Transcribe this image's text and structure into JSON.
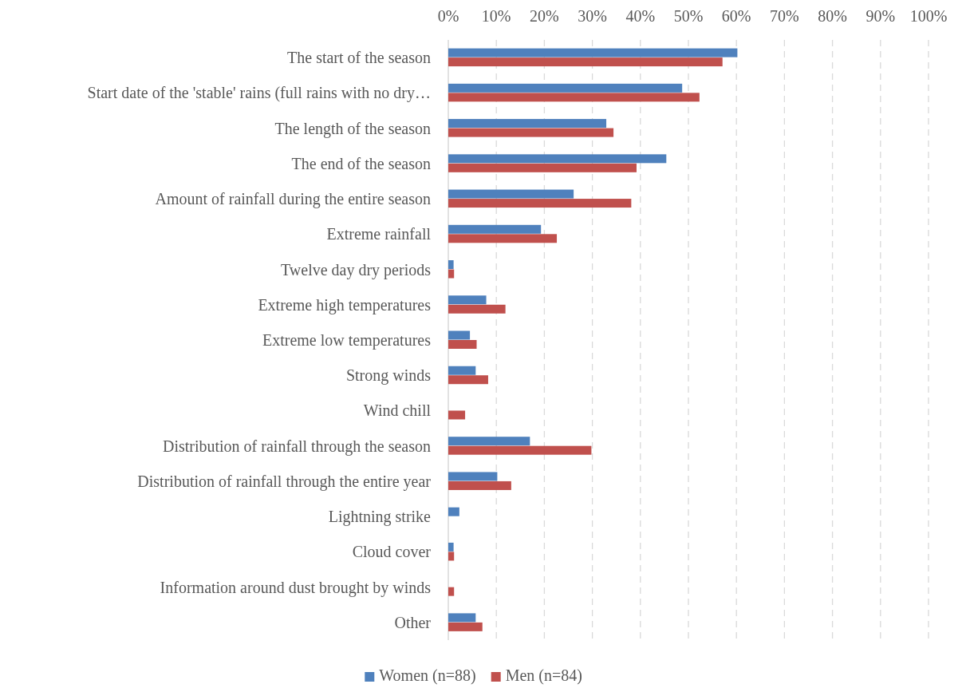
{
  "chart_data": {
    "type": "bar",
    "orientation": "horizontal",
    "categories": [
      "The start of the season",
      "Start date of the 'stable' rains (full rains with no dry…",
      "The length of the season",
      "The end of the season",
      "Amount of rainfall during the entire season",
      "Extreme rainfall",
      "Twelve day dry periods",
      "Extreme high temperatures",
      "Extreme low temperatures",
      "Strong winds",
      "Wind chill",
      "Distribution of rainfall through the season",
      "Distribution of rainfall through the entire year",
      "Lightning strike",
      "Cloud cover",
      "Information around dust brought by winds",
      "Other"
    ],
    "series": [
      {
        "name": "Women (n=88)",
        "color": "#4f81bd",
        "values": [
          60.2,
          48.7,
          32.9,
          45.4,
          26.1,
          19.3,
          1.1,
          7.9,
          4.5,
          5.7,
          0,
          17.0,
          10.2,
          2.3,
          1.1,
          0,
          5.7
        ]
      },
      {
        "name": "Men (n=84)",
        "color": "#c0504d",
        "values": [
          57.1,
          52.3,
          34.4,
          39.2,
          38.1,
          22.6,
          1.2,
          11.9,
          5.9,
          8.3,
          3.5,
          29.8,
          13.1,
          0,
          1.2,
          1.2,
          7.1
        ]
      }
    ],
    "xlim": [
      0,
      100
    ],
    "xticks": [
      {
        "value": 0,
        "label": "0%"
      },
      {
        "value": 10,
        "label": "10%"
      },
      {
        "value": 20,
        "label": "20%"
      },
      {
        "value": 30,
        "label": "30%"
      },
      {
        "value": 40,
        "label": "40%"
      },
      {
        "value": 50,
        "label": "50%"
      },
      {
        "value": 60,
        "label": "60%"
      },
      {
        "value": 70,
        "label": "70%"
      },
      {
        "value": 80,
        "label": "80%"
      },
      {
        "value": 90,
        "label": "90%"
      },
      {
        "value": 100,
        "label": "100%"
      }
    ],
    "grid": "x",
    "legend": "bottom"
  }
}
